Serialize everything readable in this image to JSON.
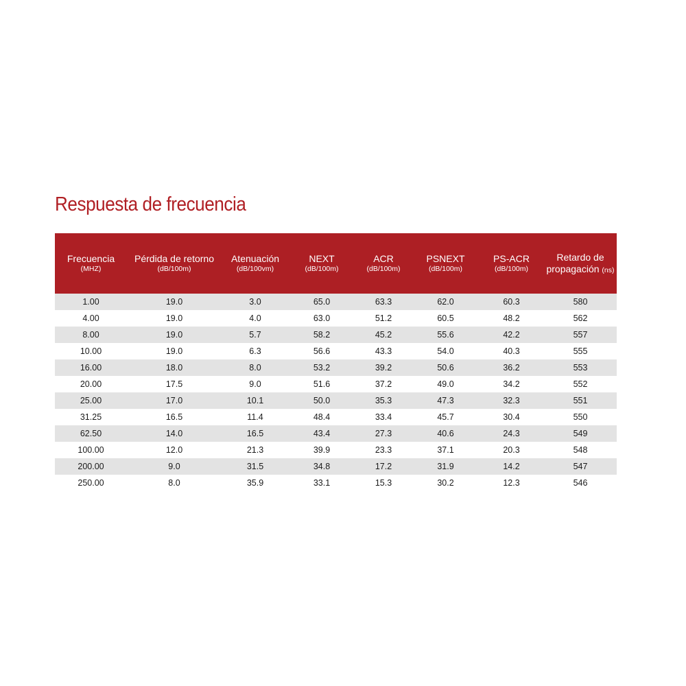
{
  "title": "Respuesta de frecuencia",
  "colors": {
    "header_bg": "#ad1f24",
    "title_text": "#b01f24",
    "row_shade": "#e3e3e3"
  },
  "table": {
    "headers": [
      {
        "main": "Frecuencia",
        "sub": "(MHZ)"
      },
      {
        "main": "Pérdida de retorno",
        "sub": "(dB/100m)"
      },
      {
        "main": "Atenuación",
        "sub": "(dB/100vm)"
      },
      {
        "main": "NEXT",
        "sub": "(dB/100m)"
      },
      {
        "main": "ACR",
        "sub": "(dB/100m)"
      },
      {
        "main": "PSNEXT",
        "sub": "(dB/100m)"
      },
      {
        "main": "PS-ACR",
        "sub": "(dB/100m)"
      },
      {
        "main_line1": "Retardo de",
        "main_line2": "propagación",
        "unit": "(ns)"
      }
    ],
    "rows": [
      [
        "1.00",
        "19.0",
        "3.0",
        "65.0",
        "63.3",
        "62.0",
        "60.3",
        "580"
      ],
      [
        "4.00",
        "19.0",
        "4.0",
        "63.0",
        "51.2",
        "60.5",
        "48.2",
        "562"
      ],
      [
        "8.00",
        "19.0",
        "5.7",
        "58.2",
        "45.2",
        "55.6",
        "42.2",
        "557"
      ],
      [
        "10.00",
        "19.0",
        "6.3",
        "56.6",
        "43.3",
        "54.0",
        "40.3",
        "555"
      ],
      [
        "16.00",
        "18.0",
        "8.0",
        "53.2",
        "39.2",
        "50.6",
        "36.2",
        "553"
      ],
      [
        "20.00",
        "17.5",
        "9.0",
        "51.6",
        "37.2",
        "49.0",
        "34.2",
        "552"
      ],
      [
        "25.00",
        "17.0",
        "10.1",
        "50.0",
        "35.3",
        "47.3",
        "32.3",
        "551"
      ],
      [
        "31.25",
        "16.5",
        "11.4",
        "48.4",
        "33.4",
        "45.7",
        "30.4",
        "550"
      ],
      [
        "62.50",
        "14.0",
        "16.5",
        "43.4",
        "27.3",
        "40.6",
        "24.3",
        "549"
      ],
      [
        "100.00",
        "12.0",
        "21.3",
        "39.9",
        "23.3",
        "37.1",
        "20.3",
        "548"
      ],
      [
        "200.00",
        "9.0",
        "31.5",
        "34.8",
        "17.2",
        "31.9",
        "14.2",
        "547"
      ],
      [
        "250.00",
        "8.0",
        "35.9",
        "33.1",
        "15.3",
        "30.2",
        "12.3",
        "546"
      ]
    ]
  }
}
